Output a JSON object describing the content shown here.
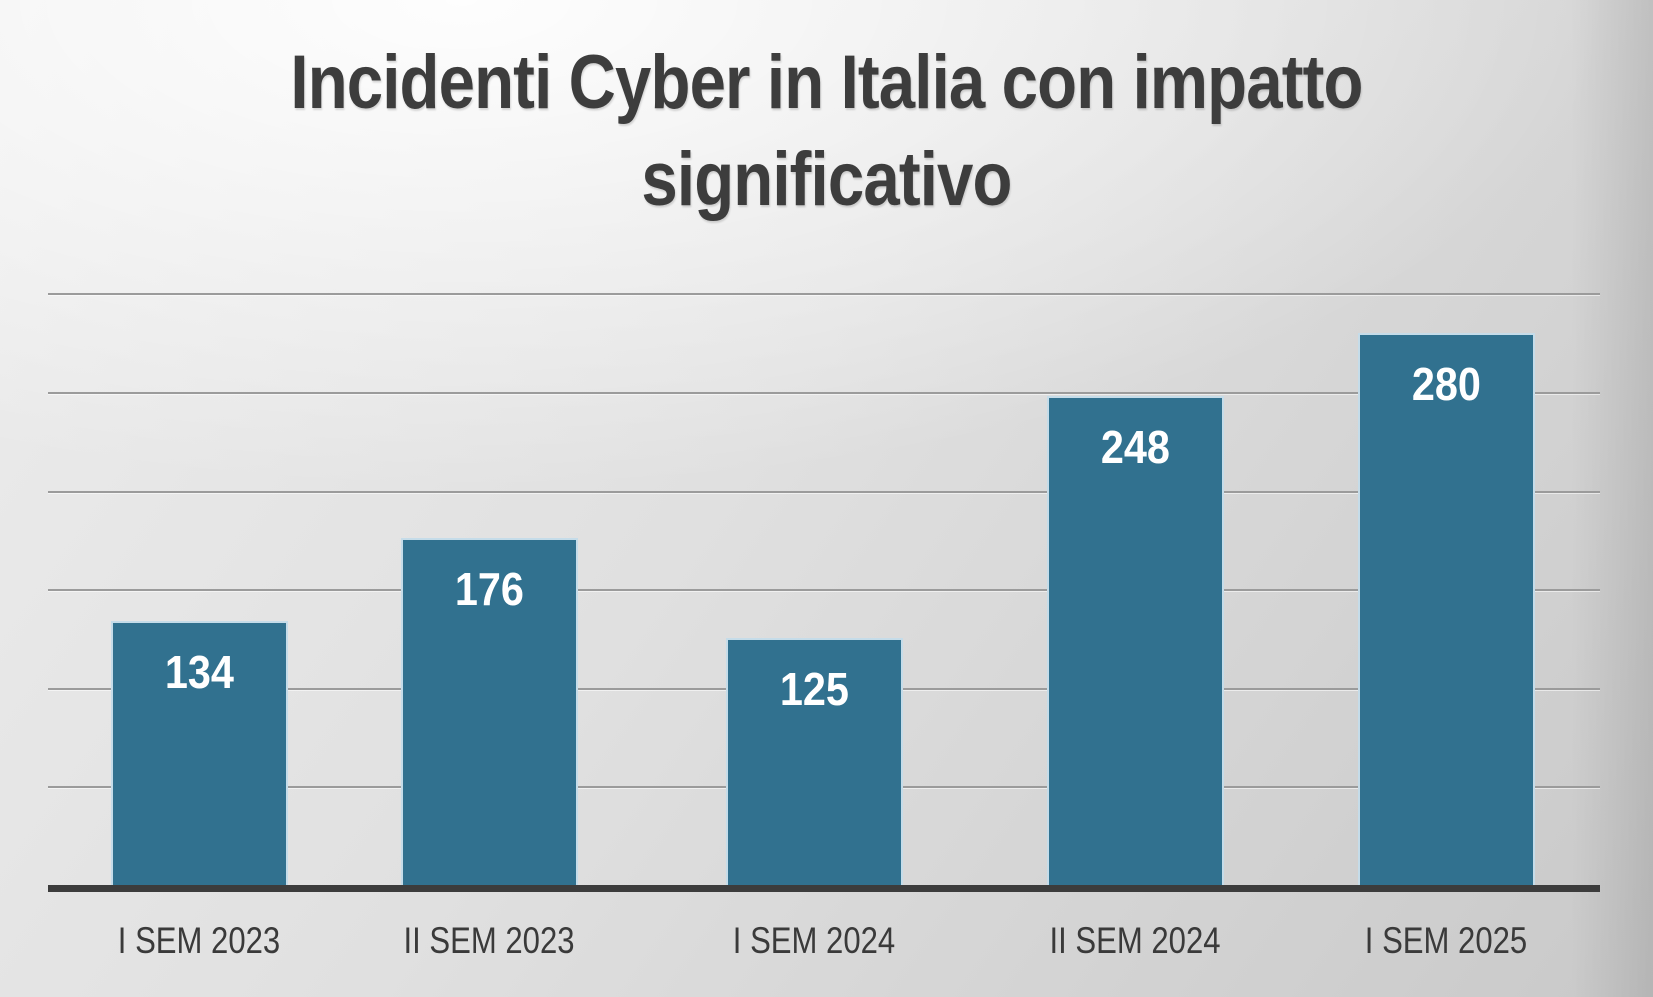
{
  "title_lines": [
    "Incidenti Cyber in Italia con impatto",
    "significativo"
  ],
  "colors": {
    "background_light": "#f7f7f7",
    "background_dark": "#c9c9c9",
    "bar_fill": "#31718f",
    "bar_border": "#d6e8f3",
    "gridline": "#9b9b9b",
    "axis_line": "#3c3c3c",
    "title_text": "#3d3d3d",
    "value_label_text": "#ffffff",
    "category_text": "#3a3a3a"
  },
  "chart_data": {
    "type": "bar",
    "title": "Incidenti Cyber in Italia con impatto significativo",
    "categories": [
      "I SEM 2023",
      "II SEM 2023",
      "I SEM 2024",
      "II SEM 2024",
      "I SEM 2025"
    ],
    "values": [
      134,
      176,
      125,
      248,
      280
    ],
    "xlabel": "",
    "ylabel": "",
    "ylim": [
      0,
      300
    ],
    "gridline_step": 50,
    "grid": true,
    "legend": false,
    "data_labels": true,
    "y_tick_labels_visible": false
  }
}
